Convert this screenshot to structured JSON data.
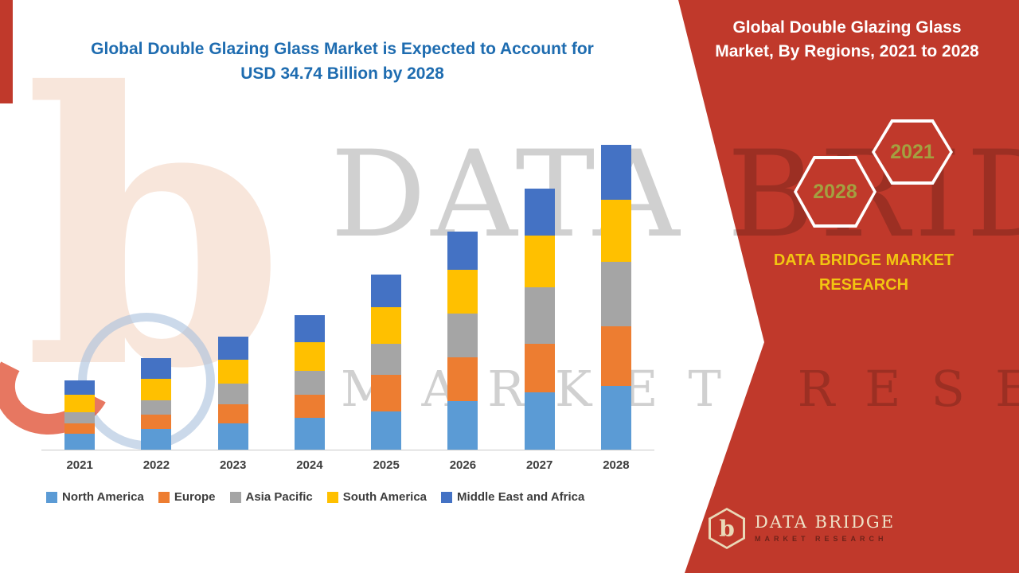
{
  "colors": {
    "panel_red": "#c0392b",
    "title_blue": "#1e6cb0",
    "brand_gold": "#f2c511"
  },
  "header": {
    "line1": "Global Double Glazing Glass Market is Expected to Account for",
    "line2": "USD 34.74 Billion by 2028"
  },
  "right_panel": {
    "title_line1": "Global Double Glazing Glass",
    "title_line2": "Market, By Regions, 2021 to 2028",
    "badges": [
      "2028",
      "2021"
    ],
    "brand_line1": "DATA BRIDGE MARKET",
    "brand_line2": "RESEARCH"
  },
  "watermark": {
    "logo_letter": "b",
    "line1": "DATA BRIDGE",
    "line2": "MARKET RESEARCH"
  },
  "footer_logo": {
    "letter": "b",
    "name": "DATA BRIDGE",
    "tagline": "MARKET RESEARCH"
  },
  "chart_data": {
    "type": "bar",
    "stacked": true,
    "title": "Global Double Glazing Glass Market is Expected to Account for USD 34.74 Billion by 2028",
    "value_unit": "USD Billion",
    "categories": [
      "2021",
      "2022",
      "2023",
      "2024",
      "2025",
      "2026",
      "2027",
      "2028"
    ],
    "series": [
      {
        "name": "North America",
        "color": "#5B9BD5",
        "values": [
          1.8,
          2.4,
          3.0,
          3.6,
          4.4,
          5.5,
          6.5,
          7.3
        ]
      },
      {
        "name": "Europe",
        "color": "#ED7D31",
        "values": [
          1.2,
          1.6,
          2.2,
          2.7,
          4.1,
          5.0,
          5.6,
          6.8
        ]
      },
      {
        "name": "Asia Pacific",
        "color": "#A5A5A5",
        "values": [
          1.3,
          1.6,
          2.3,
          2.7,
          3.6,
          5.0,
          6.4,
          7.3
        ]
      },
      {
        "name": "South America",
        "color": "#FFC000",
        "values": [
          2.0,
          2.5,
          2.7,
          3.2,
          4.1,
          5.0,
          5.9,
          7.1
        ]
      },
      {
        "name": "Middle East and Africa",
        "color": "#4472C4",
        "values": [
          1.6,
          2.3,
          2.7,
          3.1,
          3.8,
          4.4,
          5.4,
          6.24
        ]
      }
    ],
    "xlabel": "",
    "ylabel": "",
    "ylim": [
      0,
      35
    ],
    "gridlines": false,
    "legend_position": "bottom"
  }
}
